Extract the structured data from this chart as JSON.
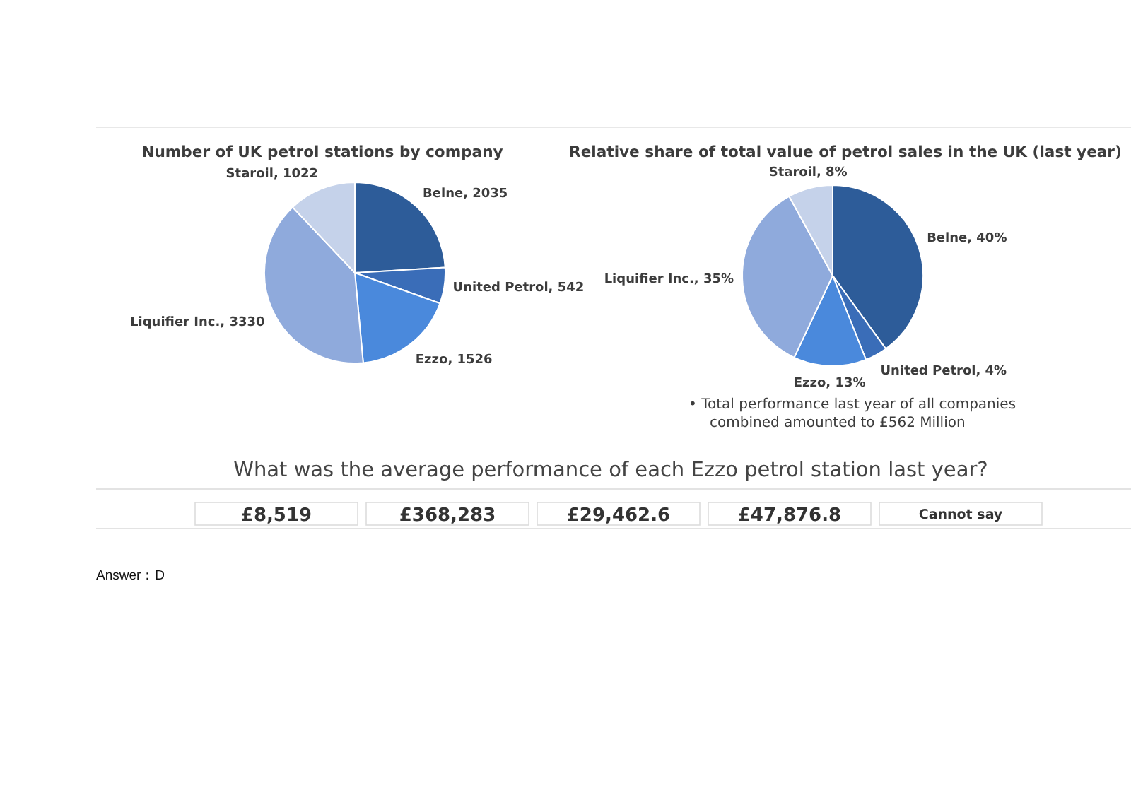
{
  "chart_data": [
    {
      "type": "pie",
      "title": "Number of UK petrol stations by company",
      "categories": [
        "Belne",
        "United Petrol",
        "Ezzo",
        "Liquifier Inc.",
        "Staroil"
      ],
      "values": [
        2035,
        542,
        1526,
        3330,
        1022
      ],
      "value_labels": [
        "2035",
        "542",
        "1526",
        "3330",
        "1022"
      ],
      "colors": [
        "#2d5c99",
        "#3a6db8",
        "#4a89dc",
        "#8faadc",
        "#c5d2ea"
      ]
    },
    {
      "type": "pie",
      "title": "Relative share of total value of petrol sales in the UK (last year)",
      "categories": [
        "Belne",
        "United Petrol",
        "Ezzo",
        "Liquifier Inc.",
        "Staroil"
      ],
      "values": [
        40,
        4,
        13,
        35,
        8
      ],
      "value_labels": [
        "40%",
        "4%",
        "13%",
        "35%",
        "8%"
      ],
      "colors": [
        "#2d5c99",
        "#3a6db8",
        "#4a89dc",
        "#8faadc",
        "#c5d2ea"
      ],
      "annotations": [
        "• Total performance last year of all companies combined amounted to £562 Million"
      ]
    },
    {
      "type": "other",
      "title": "What was the average performance of each Ezzo petrol station last year?",
      "annotations": [
        "£8,519",
        "£368,283",
        "£29,462.6",
        "£47,876.8",
        "Cannot say",
        "Answer：D"
      ]
    }
  ]
}
